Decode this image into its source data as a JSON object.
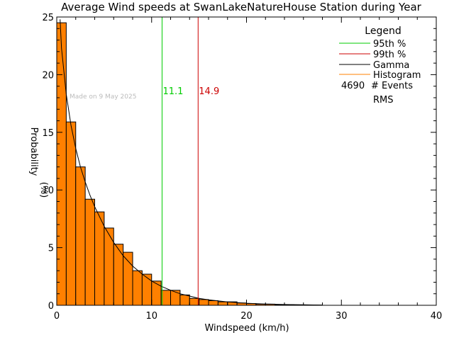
{
  "chart_data": {
    "type": "bar",
    "title": "Average Wind speeds at SwanLakeNatureHouse Station during Year",
    "xlabel": "Windspeed (km/h)",
    "ylabel_line1": "Probability",
    "ylabel_line2": "(%)",
    "xlim": [
      0,
      40
    ],
    "ylim": [
      0,
      25
    ],
    "x_ticks": [
      0,
      10,
      20,
      30,
      40
    ],
    "y_ticks": [
      0,
      5,
      10,
      15,
      20,
      25
    ],
    "bin_width": 1,
    "histogram": [
      {
        "x0": 0,
        "value": 24.5
      },
      {
        "x0": 1,
        "value": 15.9
      },
      {
        "x0": 2,
        "value": 12.0
      },
      {
        "x0": 3,
        "value": 9.2
      },
      {
        "x0": 4,
        "value": 8.1
      },
      {
        "x0": 5,
        "value": 6.7
      },
      {
        "x0": 6,
        "value": 5.3
      },
      {
        "x0": 7,
        "value": 4.6
      },
      {
        "x0": 8,
        "value": 3.0
      },
      {
        "x0": 9,
        "value": 2.7
      },
      {
        "x0": 10,
        "value": 2.1
      },
      {
        "x0": 11,
        "value": 1.3
      },
      {
        "x0": 12,
        "value": 1.3
      },
      {
        "x0": 13,
        "value": 0.9
      },
      {
        "x0": 14,
        "value": 0.6
      },
      {
        "x0": 15,
        "value": 0.5
      },
      {
        "x0": 16,
        "value": 0.4
      },
      {
        "x0": 17,
        "value": 0.3
      },
      {
        "x0": 18,
        "value": 0.3
      },
      {
        "x0": 19,
        "value": 0.2
      },
      {
        "x0": 20,
        "value": 0.15
      },
      {
        "x0": 21,
        "value": 0.1
      },
      {
        "x0": 22,
        "value": 0.1
      },
      {
        "x0": 23,
        "value": 0.05
      },
      {
        "x0": 24,
        "value": 0.05
      },
      {
        "x0": 25,
        "value": 0.03
      },
      {
        "x0": 26,
        "value": 0.03
      },
      {
        "x0": 27,
        "value": 0.02
      }
    ],
    "gamma_curve": {
      "x": [
        0.35,
        0.5,
        1.0,
        1.5,
        2.0,
        2.5,
        3.0,
        3.5,
        4.0,
        5.0,
        6.0,
        7.0,
        8.0,
        9.0,
        10.0,
        11.0,
        12.0,
        13.0,
        14.0,
        15.0,
        16.0,
        18.0,
        20.0,
        22.0,
        24.0,
        26.0,
        28.0
      ],
      "y": [
        24.8,
        22.3,
        18.3,
        15.6,
        13.6,
        12.0,
        10.7,
        9.55,
        8.55,
        6.85,
        5.45,
        4.3,
        3.4,
        2.7,
        2.1,
        1.65,
        1.3,
        1.0,
        0.8,
        0.6,
        0.47,
        0.29,
        0.18,
        0.11,
        0.07,
        0.04,
        0.02
      ]
    },
    "percentile_95": {
      "label": "95th %",
      "value": 11.1,
      "text": "11.1",
      "color": "#00cc00"
    },
    "percentile_99": {
      "label": "99th %",
      "value": 14.9,
      "text": "14.9",
      "color": "#cc0000"
    },
    "legend": {
      "title": "Legend",
      "placement": "top-right",
      "items": [
        {
          "label": "95th %",
          "color": "#00cc00"
        },
        {
          "label": "99th %",
          "color": "#cc0000"
        },
        {
          "label": "Gamma",
          "color": "#000000"
        },
        {
          "label": "Histogram",
          "color": "#ff8000"
        }
      ],
      "events_count": "4690",
      "events_label": "# Events",
      "rms_label": "RMS"
    },
    "watermark": "Made on 9 May 2025",
    "colors": {
      "histogram_fill": "#ff8000",
      "histogram_edge": "#000000",
      "gamma": "#000000"
    }
  }
}
